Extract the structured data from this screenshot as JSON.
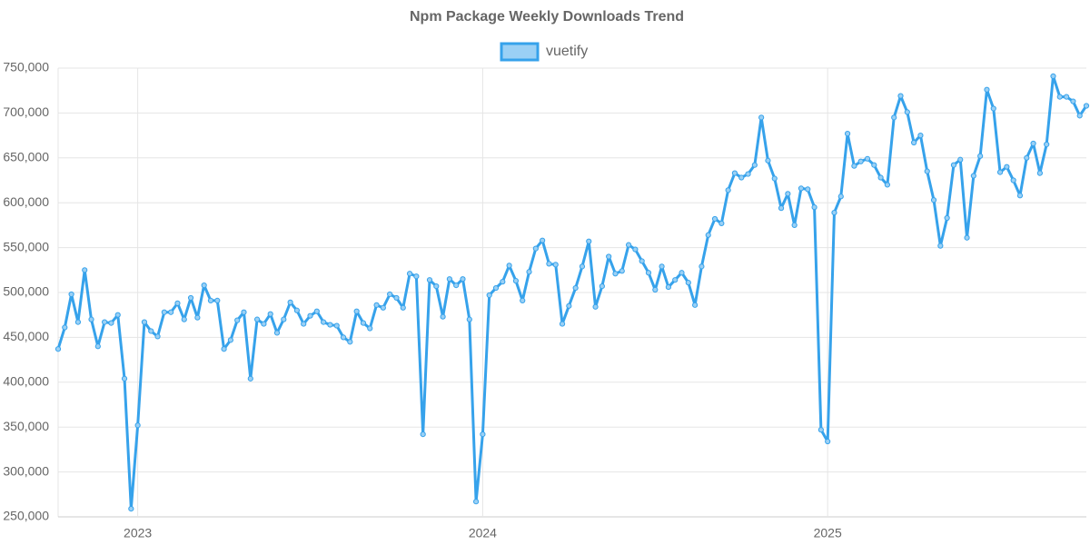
{
  "chart_data": {
    "type": "line",
    "title": "Npm Package Weekly Downloads Trend",
    "categories": [
      null,
      null,
      null,
      null,
      null,
      null,
      null,
      null,
      null,
      null,
      null,
      null,
      "2023",
      null,
      null,
      null,
      null,
      null,
      null,
      null,
      null,
      null,
      null,
      null,
      null,
      null,
      null,
      null,
      null,
      null,
      null,
      null,
      null,
      null,
      null,
      null,
      null,
      null,
      null,
      null,
      null,
      null,
      null,
      null,
      null,
      null,
      null,
      null,
      null,
      null,
      null,
      null,
      null,
      null,
      null,
      null,
      null,
      null,
      null,
      null,
      null,
      null,
      null,
      null,
      "2024",
      null,
      null,
      null,
      null,
      null,
      null,
      null,
      null,
      null,
      null,
      null,
      null,
      null,
      null,
      null,
      null,
      null,
      null,
      null,
      null,
      null,
      null,
      null,
      null,
      null,
      null,
      null,
      null,
      null,
      null,
      null,
      null,
      null,
      null,
      null,
      null,
      null,
      null,
      null,
      null,
      null,
      null,
      null,
      null,
      null,
      null,
      null,
      null,
      null,
      null,
      null,
      "2025",
      null,
      null,
      null,
      null,
      null,
      null,
      null,
      null,
      null,
      null,
      null,
      null,
      null,
      null,
      null,
      null,
      null,
      null,
      null,
      null,
      null,
      null,
      null,
      null,
      null,
      null,
      null,
      null,
      null,
      null,
      null,
      null,
      null,
      null,
      null,
      null,
      null,
      null,
      null
    ],
    "series": [
      {
        "name": "vuetify",
        "color": "#36a2eb",
        "fill": "#9ad0f5",
        "values": [
          437000,
          461000,
          498000,
          467000,
          525000,
          470000,
          440000,
          467000,
          466000,
          475000,
          404000,
          259000,
          352000,
          467000,
          457000,
          451000,
          478000,
          478000,
          488000,
          470000,
          494000,
          472000,
          508000,
          491000,
          491000,
          437000,
          447000,
          469000,
          478000,
          404000,
          470000,
          465000,
          476000,
          455000,
          470000,
          489000,
          480000,
          465000,
          474000,
          479000,
          467000,
          464000,
          463000,
          450000,
          445000,
          479000,
          466000,
          460000,
          486000,
          483000,
          498000,
          494000,
          483000,
          521000,
          518000,
          342000,
          514000,
          507000,
          473000,
          515000,
          508000,
          515000,
          470000,
          267000,
          342000,
          497000,
          505000,
          512000,
          530000,
          513000,
          491000,
          523000,
          549000,
          558000,
          532000,
          531000,
          465000,
          485000,
          505000,
          529000,
          557000,
          484000,
          507000,
          540000,
          521000,
          524000,
          553000,
          548000,
          535000,
          522000,
          503000,
          529000,
          506000,
          514000,
          522000,
          511000,
          486000,
          529000,
          564000,
          582000,
          577000,
          614000,
          633000,
          628000,
          632000,
          642000,
          695000,
          647000,
          627000,
          594000,
          610000,
          575000,
          616000,
          615000,
          595000,
          347000,
          334000,
          589000,
          607000,
          677000,
          641000,
          646000,
          649000,
          642000,
          628000,
          620000,
          695000,
          719000,
          701000,
          667000,
          675000,
          635000,
          603000,
          552000,
          583000,
          642000,
          648000,
          561000,
          630000,
          652000,
          726000,
          705000,
          634000,
          640000,
          625000,
          608000,
          650000,
          666000,
          633000,
          665000,
          741000,
          718000,
          718000,
          713000,
          697000,
          708000
        ]
      }
    ],
    "ylim": [
      250000,
      750000
    ],
    "yticks": [
      {
        "value": 250000,
        "label": "250,000"
      },
      {
        "value": 300000,
        "label": "300,000"
      },
      {
        "value": 350000,
        "label": "350,000"
      },
      {
        "value": 400000,
        "label": "400,000"
      },
      {
        "value": 450000,
        "label": "450,000"
      },
      {
        "value": 500000,
        "label": "500,000"
      },
      {
        "value": 550000,
        "label": "550,000"
      },
      {
        "value": 600000,
        "label": "600,000"
      },
      {
        "value": 650000,
        "label": "650,000"
      },
      {
        "value": 700000,
        "label": "700,000"
      },
      {
        "value": 750000,
        "label": "750,000"
      }
    ],
    "grid": true,
    "legend": "top"
  }
}
